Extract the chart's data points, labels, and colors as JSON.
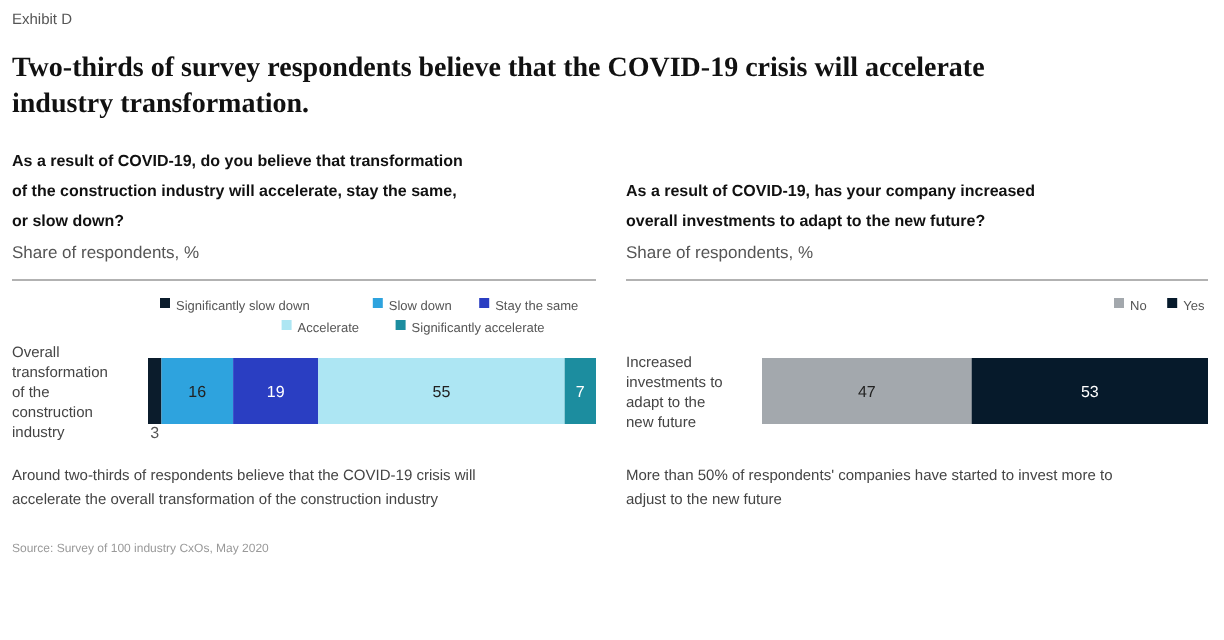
{
  "chart_data": [
    {
      "type": "bar",
      "orientation": "horizontal",
      "stacked": true,
      "data_labels": true,
      "legend": "top right",
      "title": "Two-thirds of survey respondents believe that the COVID-19 crisis will accelerate industry transformation.",
      "subtitle": "As a result of COVID-19, do you believe that transformation of the construction industry will accelerate, stay the same, or slow down?",
      "xlabel": "Share of respondents, %",
      "categories": [
        "Overall transformation of the construction industry"
      ],
      "series": [
        {
          "name": "Significantly slow down",
          "color": "#0b1c2c",
          "values": [
            3
          ]
        },
        {
          "name": "Slow down",
          "color": "#2ea3de",
          "values": [
            16
          ]
        },
        {
          "name": "Stay the same",
          "color": "#2a3ec2",
          "values": [
            19
          ]
        },
        {
          "name": "Accelerate",
          "color": "#ade6f3",
          "values": [
            55
          ]
        },
        {
          "name": "Significantly accelerate",
          "color": "#1c8d9f",
          "values": [
            7
          ]
        }
      ],
      "annotations": [
        "Exhibit D",
        "Around two-thirds of respondents believe that the COVID-19 crisis will accelerate the overall transformation of the construction industry",
        "Source: Survey of 100 industry CxOs, May 2020"
      ]
    },
    {
      "type": "bar",
      "orientation": "horizontal",
      "stacked": true,
      "data_labels": true,
      "legend": "top right",
      "subtitle": "As a result of COVID-19, has your company increased overall investments to adapt to the new future?",
      "xlabel": "Share of respondents, %",
      "categories": [
        "Increased investments to adapt to the new future"
      ],
      "series": [
        {
          "name": "No",
          "color": "#a3a8ad",
          "values": [
            47
          ]
        },
        {
          "name": "Yes",
          "color": "#061a2b",
          "values": [
            53
          ]
        }
      ],
      "annotations": [
        "More than 50% of respondents' companies have started to invest more to adjust to the new future"
      ]
    }
  ]
}
